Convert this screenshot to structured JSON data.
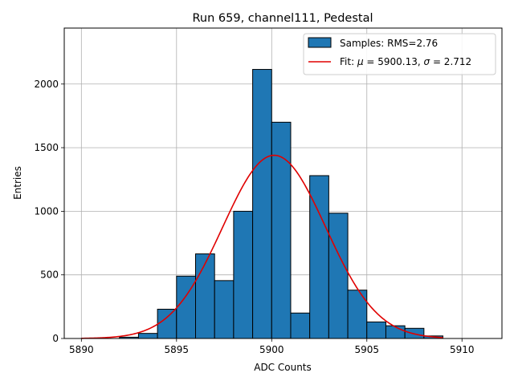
{
  "chart_data": {
    "type": "bar",
    "title": "Run 659, channel111, Pedestal",
    "xlabel": "ADC Counts",
    "ylabel": "Entries",
    "xlim": [
      5889.1,
      5912.1
    ],
    "ylim": [
      0,
      2440
    ],
    "xticks": [
      5890,
      5895,
      5900,
      5905,
      5910
    ],
    "yticks": [
      0,
      500,
      1000,
      1500,
      2000
    ],
    "grid": true,
    "legend_position": "top-right",
    "histogram": {
      "name": "Samples: RMS=2.76",
      "color": "#1f77b4",
      "bin_width": 1,
      "bin_left_edges": [
        5892,
        5893,
        5894,
        5895,
        5896,
        5897,
        5898,
        5899,
        5900,
        5901,
        5902,
        5903,
        5904,
        5905,
        5906,
        5907,
        5908
      ],
      "values": [
        10,
        40,
        230,
        490,
        665,
        455,
        1000,
        2115,
        1700,
        200,
        1280,
        985,
        380,
        130,
        100,
        80,
        20
      ]
    },
    "fit": {
      "name_prefix": "Fit: ",
      "mu_symbol": "μ",
      "sigma_symbol": "σ",
      "mu": 5900.13,
      "sigma": 2.712,
      "mu_text": " = 5900.13, ",
      "sigma_text": " = 2.712",
      "amplitude": 1440,
      "x_range": [
        5890,
        5909
      ],
      "color": "#e00000"
    }
  }
}
